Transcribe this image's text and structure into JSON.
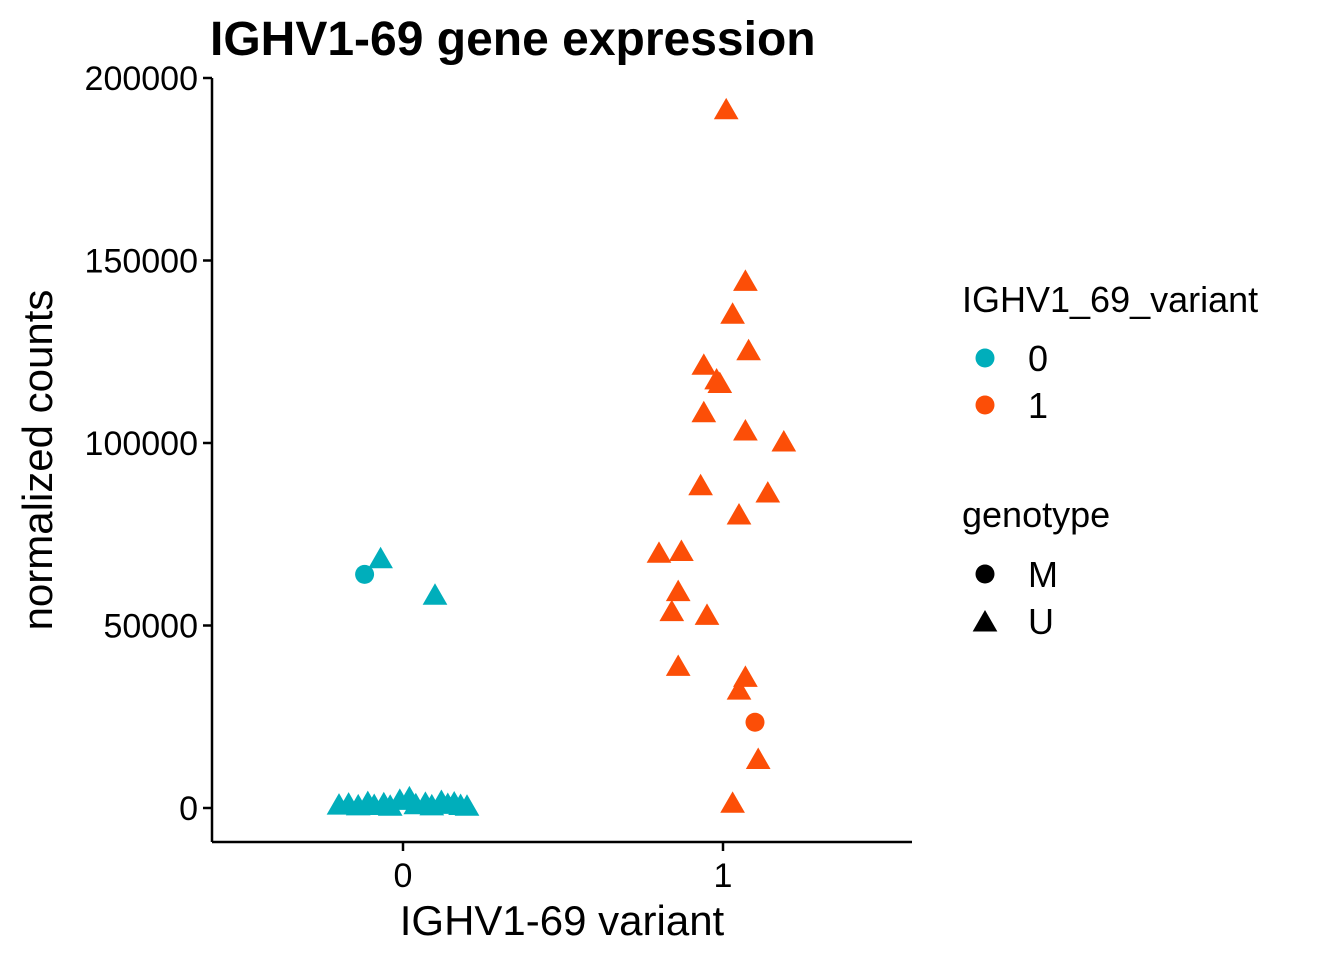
{
  "chart_data": {
    "type": "scatter",
    "title": "IGHV1-69 gene expression",
    "xlabel": "IGHV1-69 variant",
    "ylabel": "normalized counts",
    "categories": [
      "0",
      "1"
    ],
    "ylim": [
      -9000,
      200000
    ],
    "yticks": [
      0,
      50000,
      100000,
      150000,
      200000
    ],
    "ytick_labels": [
      "0",
      "50000",
      "100000",
      "150000",
      "200000"
    ],
    "xlim": [
      -0.6,
      1.6
    ],
    "grid": false,
    "legend_position": "right",
    "colors": {
      "0": "#00AEBB",
      "1": "#FC4E07"
    },
    "legends": [
      {
        "title": "IGHV1_69_variant",
        "type": "color",
        "items": [
          {
            "label": "0",
            "color": "#00AEBB"
          },
          {
            "label": "1",
            "color": "#FC4E07"
          }
        ]
      },
      {
        "title": "genotype",
        "type": "shape",
        "items": [
          {
            "label": "M",
            "shape": "circle"
          },
          {
            "label": "U",
            "shape": "triangle"
          }
        ]
      }
    ],
    "points": [
      {
        "x": -0.12,
        "y": 64000,
        "variant": "0",
        "genotype": "M"
      },
      {
        "x": -0.07,
        "y": 68000,
        "variant": "0",
        "genotype": "U"
      },
      {
        "x": 0.1,
        "y": 58000,
        "variant": "0",
        "genotype": "U"
      },
      {
        "x": -0.2,
        "y": 500,
        "variant": "0",
        "genotype": "U"
      },
      {
        "x": -0.17,
        "y": 800,
        "variant": "0",
        "genotype": "U"
      },
      {
        "x": -0.14,
        "y": 300,
        "variant": "0",
        "genotype": "U"
      },
      {
        "x": -0.11,
        "y": 1200,
        "variant": "0",
        "genotype": "U"
      },
      {
        "x": -0.09,
        "y": 400,
        "variant": "0",
        "genotype": "U"
      },
      {
        "x": -0.06,
        "y": 900,
        "variant": "0",
        "genotype": "U"
      },
      {
        "x": -0.04,
        "y": 200,
        "variant": "0",
        "genotype": "U"
      },
      {
        "x": -0.01,
        "y": 1800,
        "variant": "0",
        "genotype": "U"
      },
      {
        "x": 0.02,
        "y": 2500,
        "variant": "0",
        "genotype": "U"
      },
      {
        "x": 0.04,
        "y": 600,
        "variant": "0",
        "genotype": "U"
      },
      {
        "x": 0.07,
        "y": 1000,
        "variant": "0",
        "genotype": "U"
      },
      {
        "x": 0.09,
        "y": 300,
        "variant": "0",
        "genotype": "U"
      },
      {
        "x": 0.12,
        "y": 1500,
        "variant": "0",
        "genotype": "U"
      },
      {
        "x": 0.14,
        "y": 700,
        "variant": "0",
        "genotype": "U"
      },
      {
        "x": 0.16,
        "y": 1100,
        "variant": "0",
        "genotype": "U"
      },
      {
        "x": 0.18,
        "y": 400,
        "variant": "0",
        "genotype": "U"
      },
      {
        "x": 0.2,
        "y": 200,
        "variant": "0",
        "genotype": "U"
      },
      {
        "x": 1.01,
        "y": 191000,
        "variant": "1",
        "genotype": "U"
      },
      {
        "x": 1.07,
        "y": 144000,
        "variant": "1",
        "genotype": "U"
      },
      {
        "x": 1.03,
        "y": 135000,
        "variant": "1",
        "genotype": "U"
      },
      {
        "x": 1.08,
        "y": 125000,
        "variant": "1",
        "genotype": "U"
      },
      {
        "x": 0.94,
        "y": 121000,
        "variant": "1",
        "genotype": "U"
      },
      {
        "x": 0.98,
        "y": 117000,
        "variant": "1",
        "genotype": "U"
      },
      {
        "x": 0.99,
        "y": 116000,
        "variant": "1",
        "genotype": "U"
      },
      {
        "x": 0.94,
        "y": 108000,
        "variant": "1",
        "genotype": "U"
      },
      {
        "x": 1.07,
        "y": 103000,
        "variant": "1",
        "genotype": "U"
      },
      {
        "x": 1.19,
        "y": 100000,
        "variant": "1",
        "genotype": "U"
      },
      {
        "x": 0.93,
        "y": 88000,
        "variant": "1",
        "genotype": "U"
      },
      {
        "x": 1.14,
        "y": 86000,
        "variant": "1",
        "genotype": "U"
      },
      {
        "x": 1.05,
        "y": 80000,
        "variant": "1",
        "genotype": "U"
      },
      {
        "x": 0.8,
        "y": 69500,
        "variant": "1",
        "genotype": "U"
      },
      {
        "x": 0.87,
        "y": 70000,
        "variant": "1",
        "genotype": "U"
      },
      {
        "x": 0.86,
        "y": 59000,
        "variant": "1",
        "genotype": "U"
      },
      {
        "x": 0.84,
        "y": 53500,
        "variant": "1",
        "genotype": "U"
      },
      {
        "x": 0.95,
        "y": 52500,
        "variant": "1",
        "genotype": "U"
      },
      {
        "x": 0.86,
        "y": 38500,
        "variant": "1",
        "genotype": "U"
      },
      {
        "x": 1.07,
        "y": 35500,
        "variant": "1",
        "genotype": "U"
      },
      {
        "x": 1.05,
        "y": 32000,
        "variant": "1",
        "genotype": "U"
      },
      {
        "x": 1.1,
        "y": 23500,
        "variant": "1",
        "genotype": "M"
      },
      {
        "x": 1.11,
        "y": 13000,
        "variant": "1",
        "genotype": "U"
      },
      {
        "x": 1.03,
        "y": 1000,
        "variant": "1",
        "genotype": "U"
      }
    ]
  }
}
